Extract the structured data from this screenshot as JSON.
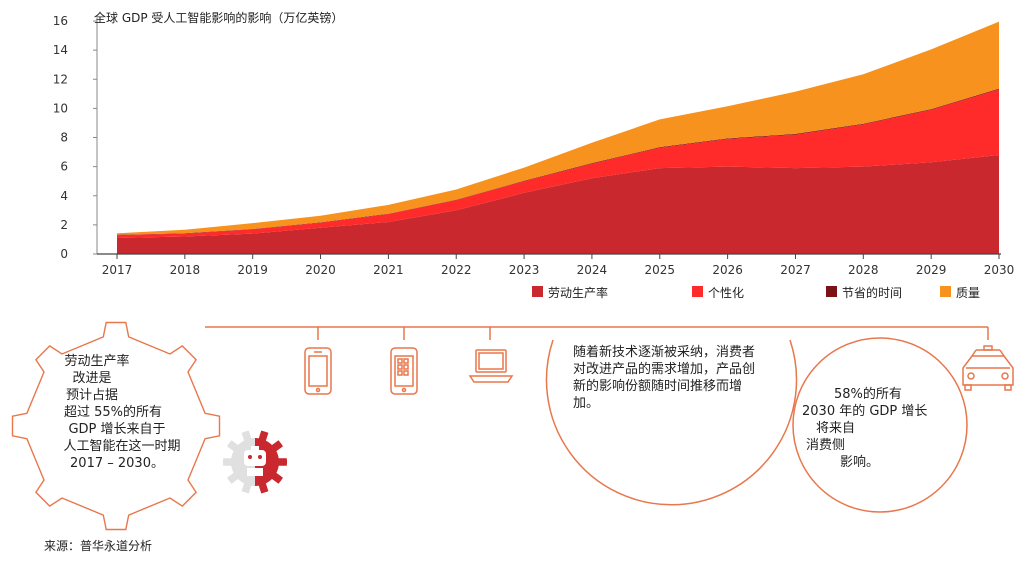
{
  "chart_data": {
    "type": "area",
    "stacked": true,
    "title": "全球 GDP 受人工智能影响的影响（万亿英镑）",
    "xlabel": "",
    "ylabel": "",
    "x": [
      2017,
      2018,
      2019,
      2020,
      2021,
      2022,
      2023,
      2024,
      2025,
      2026,
      2027,
      2028,
      2029,
      2030
    ],
    "xticks": [
      "2017",
      "2018",
      "2019",
      "2020",
      "2021",
      "2022",
      "2023",
      "2024",
      "2025",
      "2026",
      "2027",
      "2028",
      "2029",
      "2030"
    ],
    "ylim": [
      0,
      16
    ],
    "yticks": [
      "0",
      "2",
      "4",
      "6",
      "8",
      "10",
      "12",
      "14",
      "16"
    ],
    "grid": false,
    "legend_position": "bottom-right",
    "series": [
      {
        "name": "劳动生产率",
        "color": "#c8282e",
        "values": [
          1.1,
          1.2,
          1.4,
          1.8,
          2.2,
          3.0,
          4.2,
          5.2,
          5.9,
          6.0,
          5.9,
          6.0,
          6.3,
          6.8
        ]
      },
      {
        "name": "个性化",
        "color": "#ff2a2a",
        "values": [
          0.2,
          0.2,
          0.3,
          0.35,
          0.55,
          0.7,
          0.8,
          1.0,
          1.4,
          1.9,
          2.3,
          2.9,
          3.6,
          4.5
        ]
      },
      {
        "name": "节省的时间",
        "color": "#7a1216",
        "values": [
          0.02,
          0.02,
          0.02,
          0.02,
          0.02,
          0.03,
          0.03,
          0.04,
          0.04,
          0.04,
          0.05,
          0.05,
          0.05,
          0.06
        ]
      },
      {
        "name": "质量",
        "color": "#f7921e",
        "values": [
          0.1,
          0.25,
          0.4,
          0.45,
          0.6,
          0.7,
          0.9,
          1.4,
          1.9,
          2.2,
          2.9,
          3.4,
          4.1,
          4.6
        ]
      }
    ]
  },
  "infographic": {
    "gear_text": [
      "劳动生产率",
      "改进是",
      "预计占据",
      "超过 55%的所有",
      "GDP 增长来自于",
      "人工智能在这一时期",
      "2017 – 2030。"
    ],
    "middle_text": [
      "随着新技术逐渐被采纳，消费者",
      "对改进产品的需求增加，产品创",
      "新的影响份额随时间推移而增",
      "加。"
    ],
    "right_text": [
      "58%的所有",
      "2030 年的 GDP 增长",
      "将来自",
      "消费侧",
      "影响。"
    ],
    "icons": [
      "robot-gear-icon",
      "smartphone-icon",
      "tablet-icon",
      "laptop-icon",
      "car-icon"
    ],
    "accent_color": "#e8774b"
  },
  "source": "来源：普华永道分析"
}
